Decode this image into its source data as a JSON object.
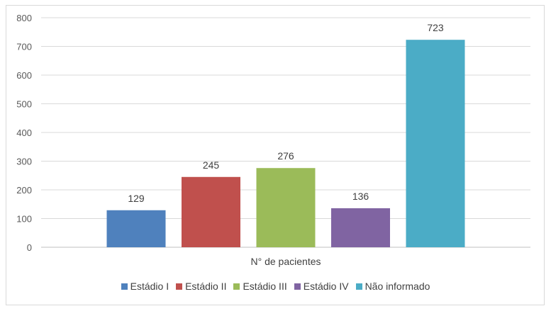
{
  "chart_data": {
    "type": "bar",
    "categories": [
      "N° de pacientes"
    ],
    "series": [
      {
        "name": "Estádio I",
        "values": [
          129
        ],
        "color": "#4F81BD"
      },
      {
        "name": "Estádio II",
        "values": [
          245
        ],
        "color": "#C0504D"
      },
      {
        "name": "Estádio III",
        "values": [
          276
        ],
        "color": "#9BBB59"
      },
      {
        "name": "Estádio IV",
        "values": [
          136
        ],
        "color": "#8064A2"
      },
      {
        "name": "Não informado",
        "values": [
          723
        ],
        "color": "#4BACC6"
      }
    ],
    "ylim": [
      0,
      800
    ],
    "yticks": [
      0,
      100,
      200,
      300,
      400,
      500,
      600,
      700,
      800
    ],
    "grid": true,
    "legend_position": "bottom"
  }
}
